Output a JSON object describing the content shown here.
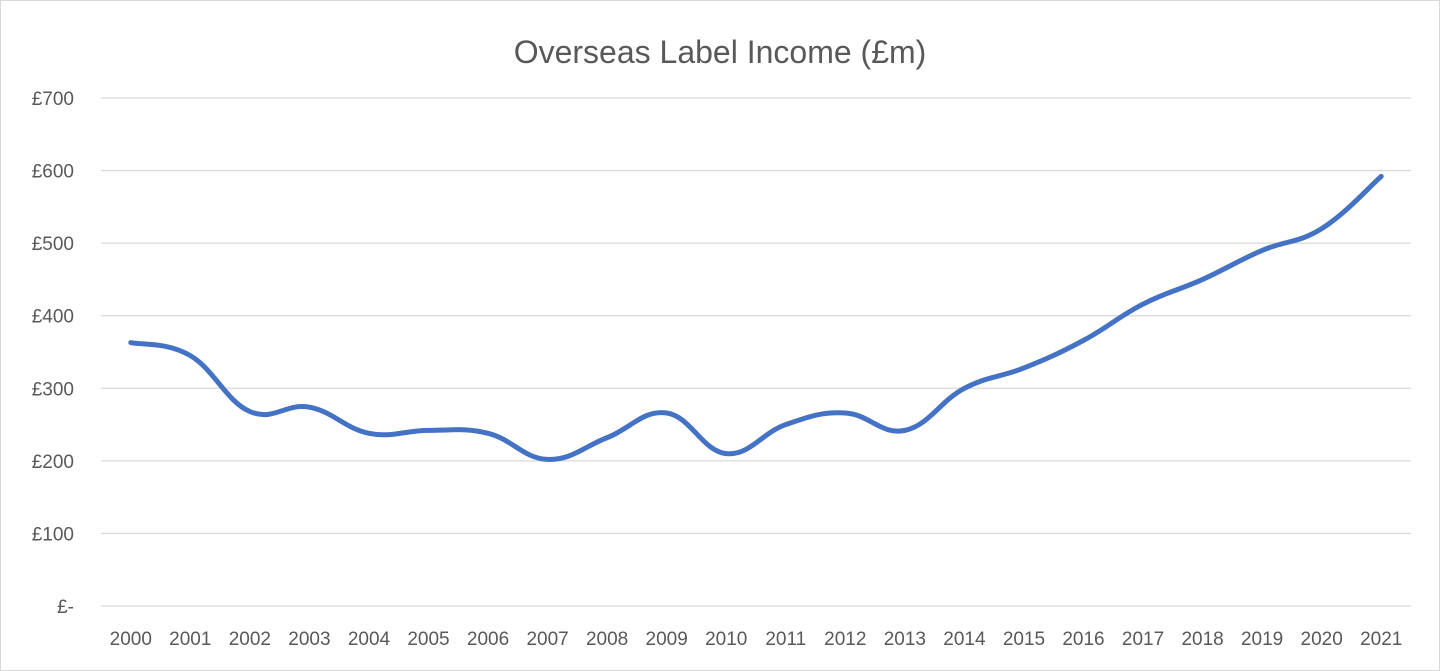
{
  "chart_data": {
    "type": "line",
    "title": "Overseas Label Income (£m)",
    "xlabel": "",
    "ylabel": "",
    "ylim": [
      0,
      700
    ],
    "y_ticks": [
      {
        "value": 0,
        "label": "£-"
      },
      {
        "value": 100,
        "label": "£100"
      },
      {
        "value": 200,
        "label": "£200"
      },
      {
        "value": 300,
        "label": "£300"
      },
      {
        "value": 400,
        "label": "£400"
      },
      {
        "value": 500,
        "label": "£500"
      },
      {
        "value": 600,
        "label": "£600"
      },
      {
        "value": 700,
        "label": "£700"
      }
    ],
    "categories": [
      "2000",
      "2001",
      "2002",
      "2003",
      "2004",
      "2005",
      "2006",
      "2007",
      "2008",
      "2009",
      "2010",
      "2011",
      "2012",
      "2013",
      "2014",
      "2015",
      "2016",
      "2017",
      "2018",
      "2019",
      "2020",
      "2021"
    ],
    "series": [
      {
        "color": "#4472c4",
        "values": [
          363,
          345,
          268,
          274,
          238,
          242,
          238,
          202,
          232,
          266,
          210,
          250,
          266,
          242,
          300,
          328,
          366,
          416,
          450,
          490,
          520,
          592
        ]
      }
    ],
    "grid": true,
    "legend": "none"
  }
}
